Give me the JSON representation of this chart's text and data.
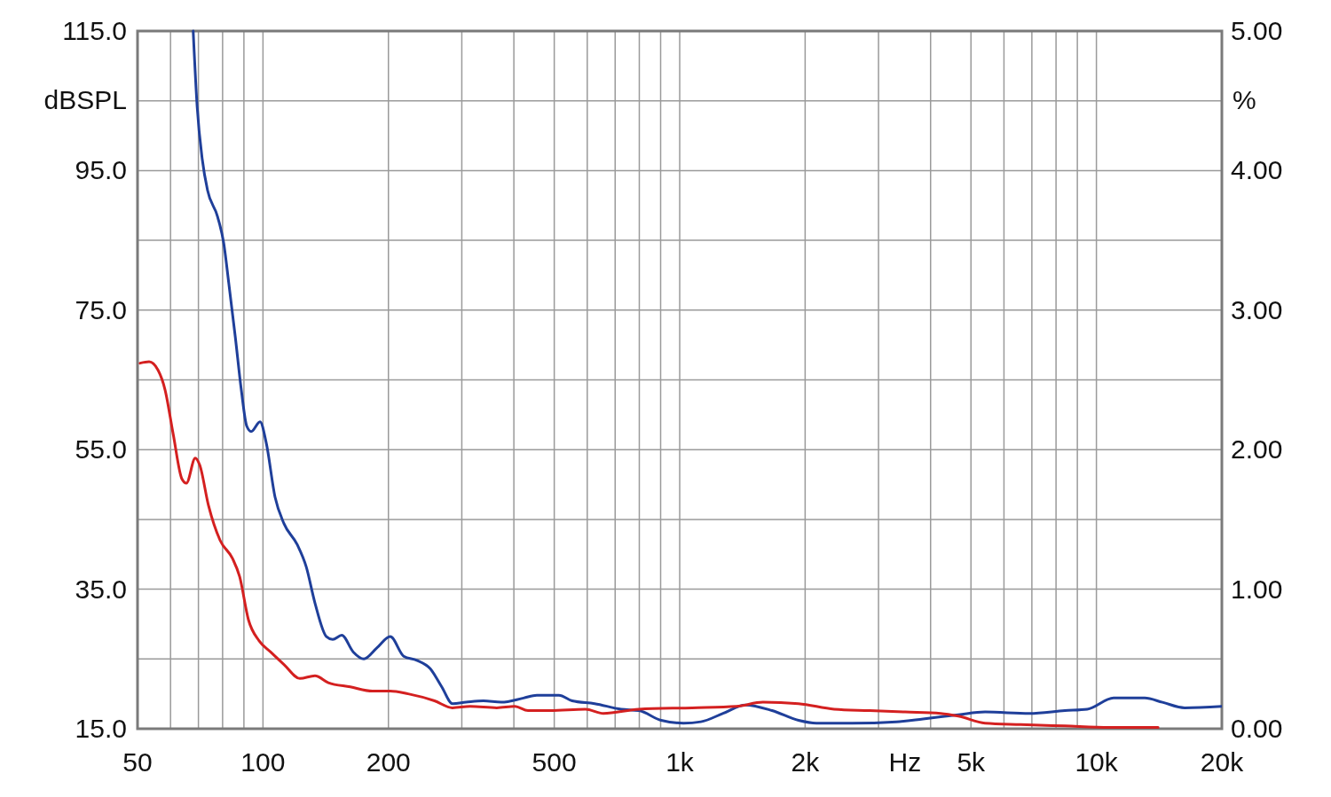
{
  "chart_data": {
    "type": "line",
    "xlabel": "Hz",
    "ylabel": "dBSPL",
    "y2label": "%",
    "log": "x",
    "grid": true,
    "xlim": [
      50,
      20000
    ],
    "xticks": [
      50,
      {
        "value": 60,
        "label": null
      },
      {
        "value": 70,
        "label": null
      },
      {
        "value": 80,
        "label": null
      },
      {
        "value": 90,
        "label": null
      },
      100,
      200,
      {
        "value": 300,
        "label": null
      },
      {
        "value": 400,
        "label": null
      },
      500,
      {
        "value": 600,
        "label": null
      },
      {
        "value": 700,
        "label": null
      },
      {
        "value": 800,
        "label": null
      },
      {
        "value": 900,
        "label": null
      },
      {
        "value": 1000,
        "label": "1k"
      },
      {
        "value": 2000,
        "label": "2k"
      },
      {
        "value": 3000,
        "label": null
      },
      {
        "value": 4000,
        "label": null
      },
      {
        "value": 5000,
        "label": "5k"
      },
      {
        "value": 6000,
        "label": null
      },
      {
        "value": 7000,
        "label": null
      },
      {
        "value": 8000,
        "label": null
      },
      {
        "value": 9000,
        "label": null
      },
      {
        "value": 10000,
        "label": "10k"
      },
      {
        "value": 20000,
        "label": "20k"
      }
    ],
    "ylim": [
      15,
      115
    ],
    "yticks": [
      {
        "value": 15,
        "label": "15.0"
      },
      {
        "value": 25,
        "label": null
      },
      {
        "value": 35,
        "label": "35.0"
      },
      {
        "value": 45,
        "label": null
      },
      {
        "value": 55,
        "label": "55.0"
      },
      {
        "value": 65,
        "label": null
      },
      {
        "value": 75,
        "label": "75.0"
      },
      {
        "value": 85,
        "label": null
      },
      {
        "value": 95,
        "label": "95.0"
      },
      {
        "value": 105,
        "label": null
      },
      {
        "value": 115,
        "label": "115.0"
      }
    ],
    "y2lim": [
      0,
      5
    ],
    "y2ticks": [
      {
        "value": 0,
        "label": "0.00"
      },
      {
        "value": 1,
        "label": "1.00"
      },
      {
        "value": 2,
        "label": "2.00"
      },
      {
        "value": 3,
        "label": "3.00"
      },
      {
        "value": 4,
        "label": "4.00"
      },
      {
        "value": 5,
        "label": "5.00"
      }
    ],
    "series": [
      {
        "color": "#1f3f9a",
        "axis": "y2",
        "x": [
          68,
          69.5,
          71.5,
          73.6,
          77.8,
          80.5,
          82.8,
          85.8,
          88.7,
          91.4,
          93.7,
          98.4,
          101.8,
          106.9,
          112.3,
          120.8,
          127,
          133.3,
          142,
          147,
          154.5,
          164.7,
          174.6,
          187.8,
          202,
          217.6,
          234,
          252,
          268.5,
          285,
          307,
          338,
          373,
          422,
          454,
          513,
          552,
          625,
          724,
          798,
          903,
          1021,
          1124,
          1271,
          1438,
          1666,
          1928,
          2128,
          2589,
          3310,
          3836,
          4665,
          5405,
          6906,
          8400,
          9505,
          10995,
          13060,
          14400,
          16290,
          20000
        ],
        "values": [
          5.0,
          4.46,
          4.08,
          3.86,
          3.67,
          3.48,
          3.19,
          2.81,
          2.43,
          2.17,
          2.13,
          2.2,
          2.05,
          1.66,
          1.47,
          1.32,
          1.16,
          0.9,
          0.66,
          0.64,
          0.67,
          0.55,
          0.5,
          0.58,
          0.66,
          0.52,
          0.49,
          0.43,
          0.3,
          0.18,
          0.19,
          0.2,
          0.19,
          0.22,
          0.24,
          0.24,
          0.2,
          0.18,
          0.14,
          0.13,
          0.06,
          0.04,
          0.05,
          0.11,
          0.17,
          0.13,
          0.06,
          0.04,
          0.04,
          0.05,
          0.07,
          0.1,
          0.12,
          0.11,
          0.13,
          0.14,
          0.22,
          0.22,
          0.19,
          0.15,
          0.16
        ]
      },
      {
        "color": "#d42020",
        "axis": "y2",
        "x": [
          50.7,
          53.3,
          56,
          58.2,
          60.9,
          63.9,
          65.5,
          68.8,
          70.5,
          74,
          78.9,
          84.5,
          87.9,
          92.3,
          97.9,
          104.3,
          112.3,
          122.6,
          133.3,
          143.5,
          162,
          183.2,
          202,
          223,
          258,
          285,
          314,
          364,
          402,
          432.6,
          489,
          594,
          656,
          798,
          1071,
          1368,
          1584,
          1928,
          2348,
          2856,
          3475,
          4227,
          4665,
          5405,
          6575,
          8400,
          10740,
          14060
        ],
        "values": [
          2.62,
          2.63,
          2.57,
          2.43,
          2.11,
          1.79,
          1.76,
          1.94,
          1.89,
          1.6,
          1.35,
          1.22,
          1.09,
          0.78,
          0.63,
          0.55,
          0.46,
          0.36,
          0.38,
          0.33,
          0.3,
          0.27,
          0.27,
          0.25,
          0.2,
          0.15,
          0.16,
          0.15,
          0.16,
          0.13,
          0.13,
          0.14,
          0.11,
          0.14,
          0.15,
          0.16,
          0.19,
          0.18,
          0.14,
          0.13,
          0.12,
          0.11,
          0.09,
          0.04,
          0.03,
          0.02,
          0.01,
          0.01
        ]
      }
    ]
  }
}
